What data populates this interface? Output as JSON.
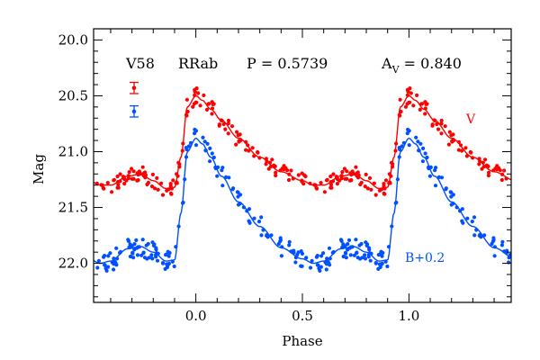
{
  "chart_data": {
    "type": "scatter",
    "title": "",
    "xlabel": "Phase",
    "ylabel": "Mag",
    "xlim": [
      -0.48,
      1.48
    ],
    "ylim": [
      22.35,
      19.9
    ],
    "y_inverted": true,
    "grid": false,
    "x_ticks": [
      0.0,
      0.5,
      1.0
    ],
    "x_tick_labels": [
      "0.0",
      "0.5",
      "1.0"
    ],
    "y_ticks": [
      20.0,
      20.5,
      21.0,
      21.5,
      22.0
    ],
    "y_tick_labels": [
      "20.0",
      "20.5",
      "21.0",
      "21.5",
      "22.0"
    ],
    "header": {
      "star": "V58",
      "type": "RRab",
      "period": "P = 0.5739",
      "amp_main": "A",
      "amp_sub": "V",
      "amp_value": " = 0.840"
    },
    "error_bars": [
      {
        "series": "V",
        "x": -0.29,
        "y": 20.43,
        "err": 0.05
      },
      {
        "series": "B+0.2",
        "x": -0.29,
        "y": 20.64,
        "err": 0.05
      }
    ],
    "template_phase": [
      0.0,
      0.03,
      0.07,
      0.12,
      0.2,
      0.3,
      0.4,
      0.5,
      0.55,
      0.6,
      0.68,
      0.74,
      0.8,
      0.86,
      0.9,
      0.93,
      0.96,
      1.0
    ],
    "series": [
      {
        "name": "V",
        "label": "V",
        "color": "#ff0000",
        "mag_template": [
          20.5,
          20.54,
          20.62,
          20.72,
          20.88,
          21.05,
          21.18,
          21.26,
          21.3,
          21.3,
          21.22,
          21.2,
          21.26,
          21.33,
          21.32,
          21.05,
          20.6,
          20.5
        ],
        "noise": 0.07
      },
      {
        "name": "B+0.2",
        "label": "B+0.2",
        "color": "#0050ff",
        "mag_template": [
          20.88,
          20.93,
          21.05,
          21.22,
          21.45,
          21.67,
          21.86,
          21.96,
          22.0,
          21.98,
          21.87,
          21.85,
          21.9,
          21.98,
          21.97,
          21.55,
          21.0,
          20.88
        ],
        "noise": 0.09
      }
    ]
  }
}
